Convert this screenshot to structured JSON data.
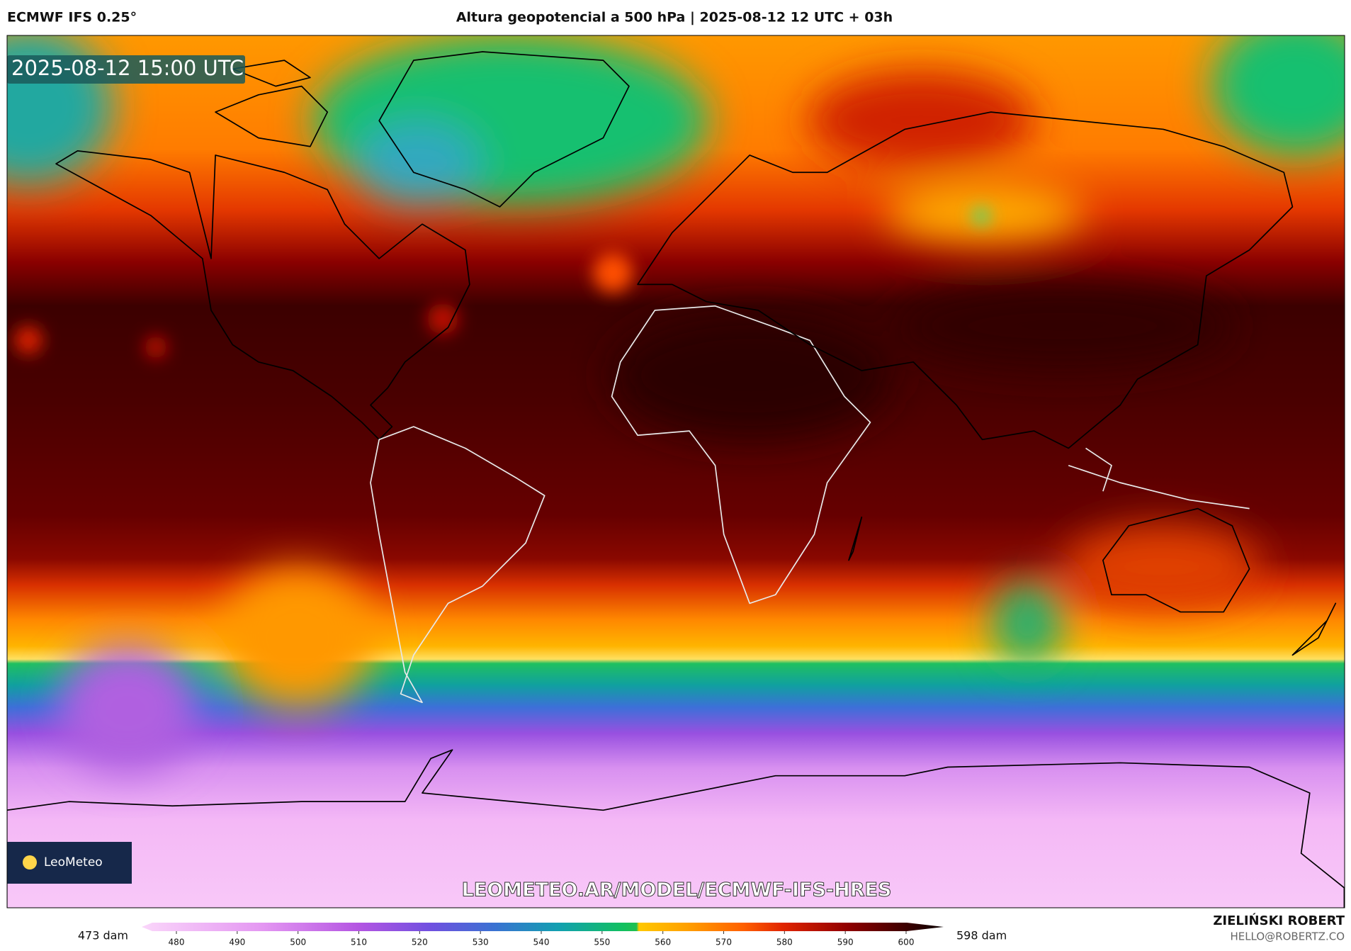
{
  "header": {
    "model": "ECMWF IFS 0.25°",
    "title": "Altura geopotencial a 500 hPa | 2025-08-12 12 UTC + 03h"
  },
  "map": {
    "timestamp": "2025-08-12 15:00 UTC",
    "logo": "LeoMeteo",
    "watermark": "LEOMETEO.AR/MODEL/ECMWF-IFS-HRES"
  },
  "colorbar": {
    "min_label": "473 dam",
    "max_label": "598 dam",
    "ticks": [
      480,
      490,
      500,
      510,
      520,
      530,
      540,
      550,
      560,
      570,
      580,
      590,
      600
    ]
  },
  "footer": {
    "author": "ZIELIŃSKI ROBERT",
    "email": "HELLO@ROBERTZ.CO"
  }
}
